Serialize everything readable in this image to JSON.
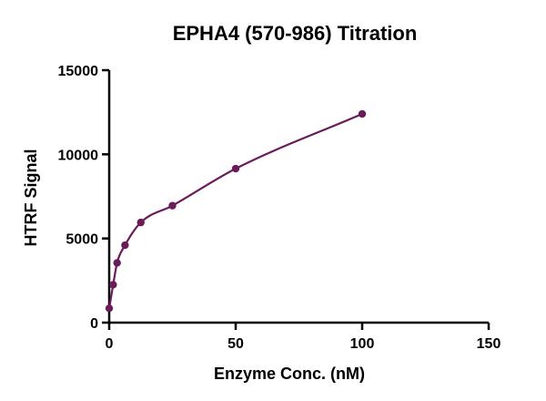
{
  "chart_data": {
    "type": "scatter",
    "title": "EPHA4 (570-986) Titration",
    "xlabel": "Enzyme Conc. (nM)",
    "ylabel": "HTRF Signal",
    "xlim": [
      0,
      150
    ],
    "ylim": [
      0,
      15000
    ],
    "xticks": [
      0,
      50,
      100,
      150
    ],
    "yticks": [
      0,
      5000,
      10000,
      15000
    ],
    "grid": false,
    "legend": "none",
    "series": [
      {
        "x": [
          0,
          1.5625,
          3.125,
          6.25,
          12.5,
          25,
          50,
          100
        ],
        "y": [
          850,
          2250,
          3550,
          4600,
          5950,
          6950,
          9150,
          12400
        ],
        "fit_curve": true
      }
    ],
    "colors": {
      "marker": "#6a1b5a",
      "line": "#6a1b5a",
      "axis": "#000000"
    }
  }
}
